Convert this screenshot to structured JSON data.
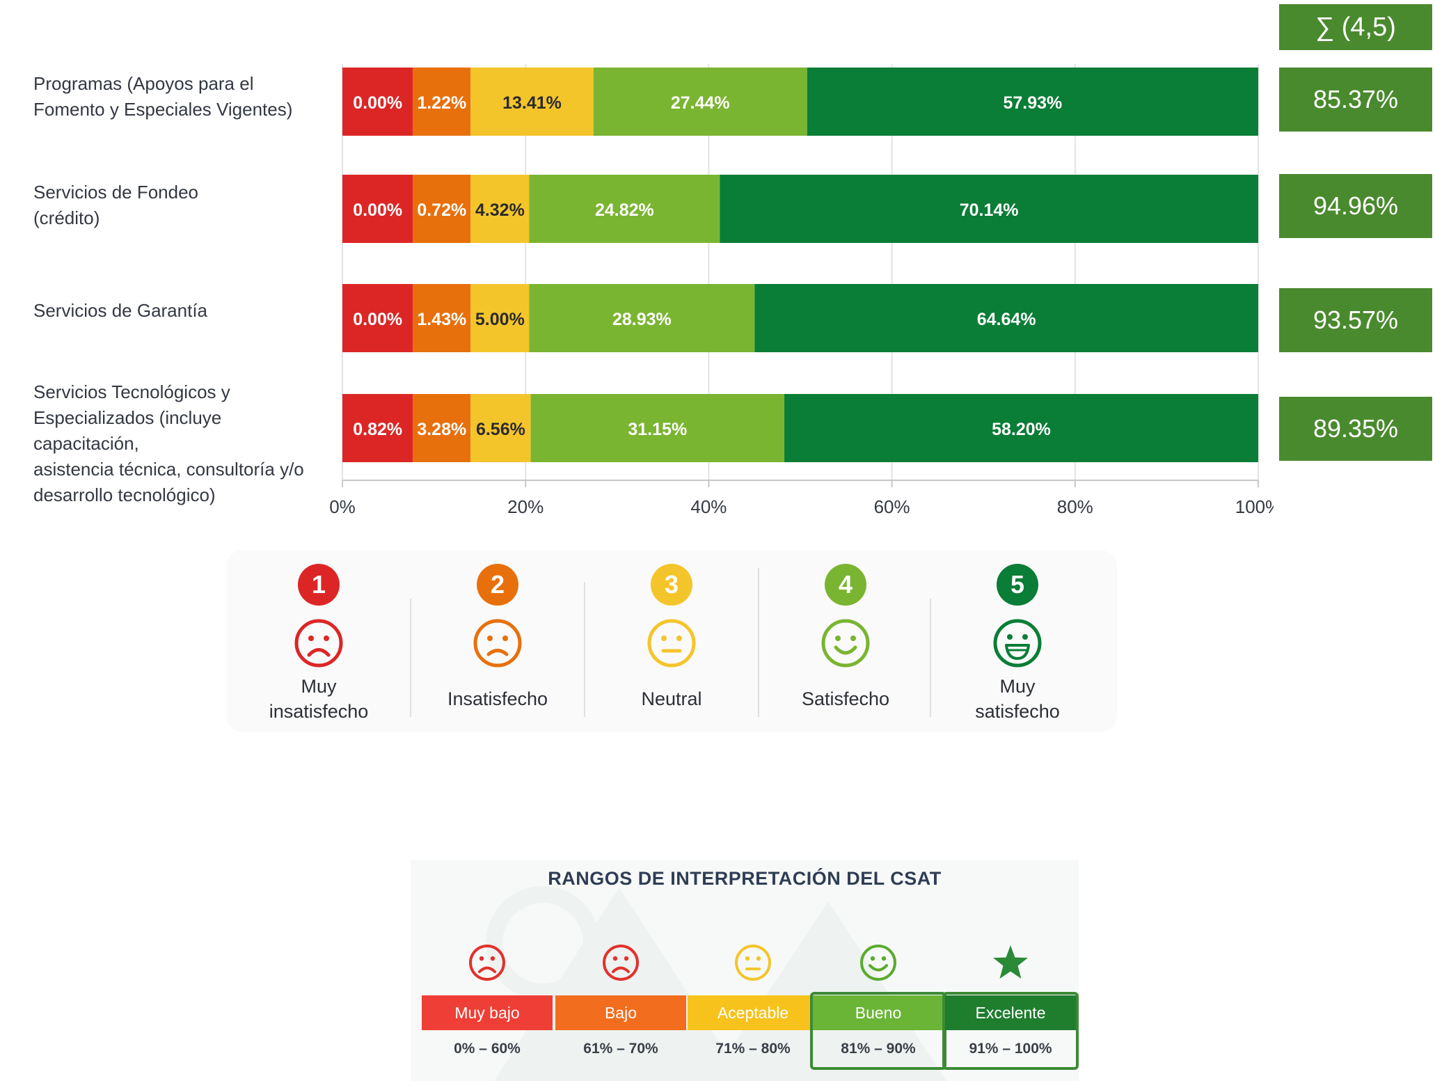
{
  "colors": {
    "level1": "#dc2626",
    "level2": "#e8700c",
    "level3": "#f4c52b",
    "level4": "#7ab531",
    "level5": "#0a7d36",
    "sum_box": "#4a8a2e"
  },
  "sum_header": "∑ (4,5)",
  "chart_data": {
    "type": "bar",
    "orientation": "horizontal",
    "stacked": true,
    "categories": [
      "Programas (Apoyos para el Fomento y Especiales Vigentes)",
      "Servicios de Fondeo (crédito)",
      "Servicios de Garantía",
      "Servicios Tecnológicos y Especializados (incluye capacitación, asistencia técnica, consultoría y/o desarrollo tecnológico)"
    ],
    "category_labels": [
      "Programas (Apoyos para el\nFomento y Especiales Vigentes)",
      "Servicios de Fondeo\n(crédito)",
      "Servicios de Garantía",
      "Servicios Tecnológicos y\nEspecializados (incluye capacitación,\nasistencia técnica, consultoría y/o\ndesarrollo tecnológico)"
    ],
    "series": [
      {
        "values": [
          0.0,
          0.0,
          0.0,
          0.82
        ],
        "labels": [
          "0.00%",
          "0.00%",
          "0.00%",
          "0.82%"
        ],
        "color": "#dc2626"
      },
      {
        "values": [
          1.22,
          0.72,
          1.43,
          3.28
        ],
        "labels": [
          "1.22%",
          "0.72%",
          "1.43%",
          "3.28%"
        ],
        "color": "#e8700c"
      },
      {
        "values": [
          13.41,
          4.32,
          5.0,
          6.56
        ],
        "labels": [
          "13.41%",
          "4.32%",
          "5.00%",
          "6.56%"
        ],
        "color": "#f4c52b"
      },
      {
        "values": [
          27.44,
          24.82,
          28.93,
          31.15
        ],
        "labels": [
          "27.44%",
          "24.82%",
          "28.93%",
          "31.15%"
        ],
        "color": "#7ab531"
      },
      {
        "values": [
          57.93,
          70.14,
          64.64,
          58.2
        ],
        "labels": [
          "57.93%",
          "70.14%",
          "64.64%",
          "58.20%"
        ],
        "color": "#0a7d36"
      }
    ],
    "xlim": [
      0,
      100
    ],
    "xticks": [
      "0%",
      "20%",
      "40%",
      "60%",
      "80%",
      "100%"
    ],
    "grid": true,
    "sum_values": [
      85.37,
      94.96,
      93.57,
      89.35
    ],
    "sum_labels": [
      "85.37%",
      "94.96%",
      "93.57%",
      "89.35%"
    ]
  },
  "legend": [
    {
      "number": "1",
      "label": "Muy\ninsatisfecho",
      "icon": "very-sad-face-icon",
      "color": "#dc2626"
    },
    {
      "number": "2",
      "label": "Insatisfecho",
      "icon": "sad-face-icon",
      "color": "#e8700c"
    },
    {
      "number": "3",
      "label": "Neutral",
      "icon": "neutral-face-icon",
      "color": "#f4c52b"
    },
    {
      "number": "4",
      "label": "Satisfecho",
      "icon": "smile-face-icon",
      "color": "#7ab531"
    },
    {
      "number": "5",
      "label": "Muy\nsatisfecho",
      "icon": "big-smile-face-icon",
      "color": "#0a7d36"
    }
  ],
  "csat": {
    "title": "RANGOS DE INTERPRETACIÓN DEL CSAT",
    "ranges": [
      {
        "label": "Muy bajo",
        "range": "0% – 60%",
        "color": "#ef3e35",
        "icon": "sad-face-icon",
        "icon_color": "#e0322d"
      },
      {
        "label": "Bajo",
        "range": "61% – 70%",
        "color": "#f36d1e",
        "icon": "sad-face-icon",
        "icon_color": "#e0322d"
      },
      {
        "label": "Aceptable",
        "range": "71% – 80%",
        "color": "#f8c21c",
        "icon": "neutral-face-icon",
        "icon_color": "#f4c52b"
      },
      {
        "label": "Bueno",
        "range": "81% – 90%",
        "color": "#6ab536",
        "icon": "smile-face-icon",
        "icon_color": "#5aab2e"
      },
      {
        "label": "Excelente",
        "range": "91% – 100%",
        "color": "#1f7d2e",
        "icon": "star-icon",
        "icon_color": "#2a8a38"
      }
    ]
  }
}
